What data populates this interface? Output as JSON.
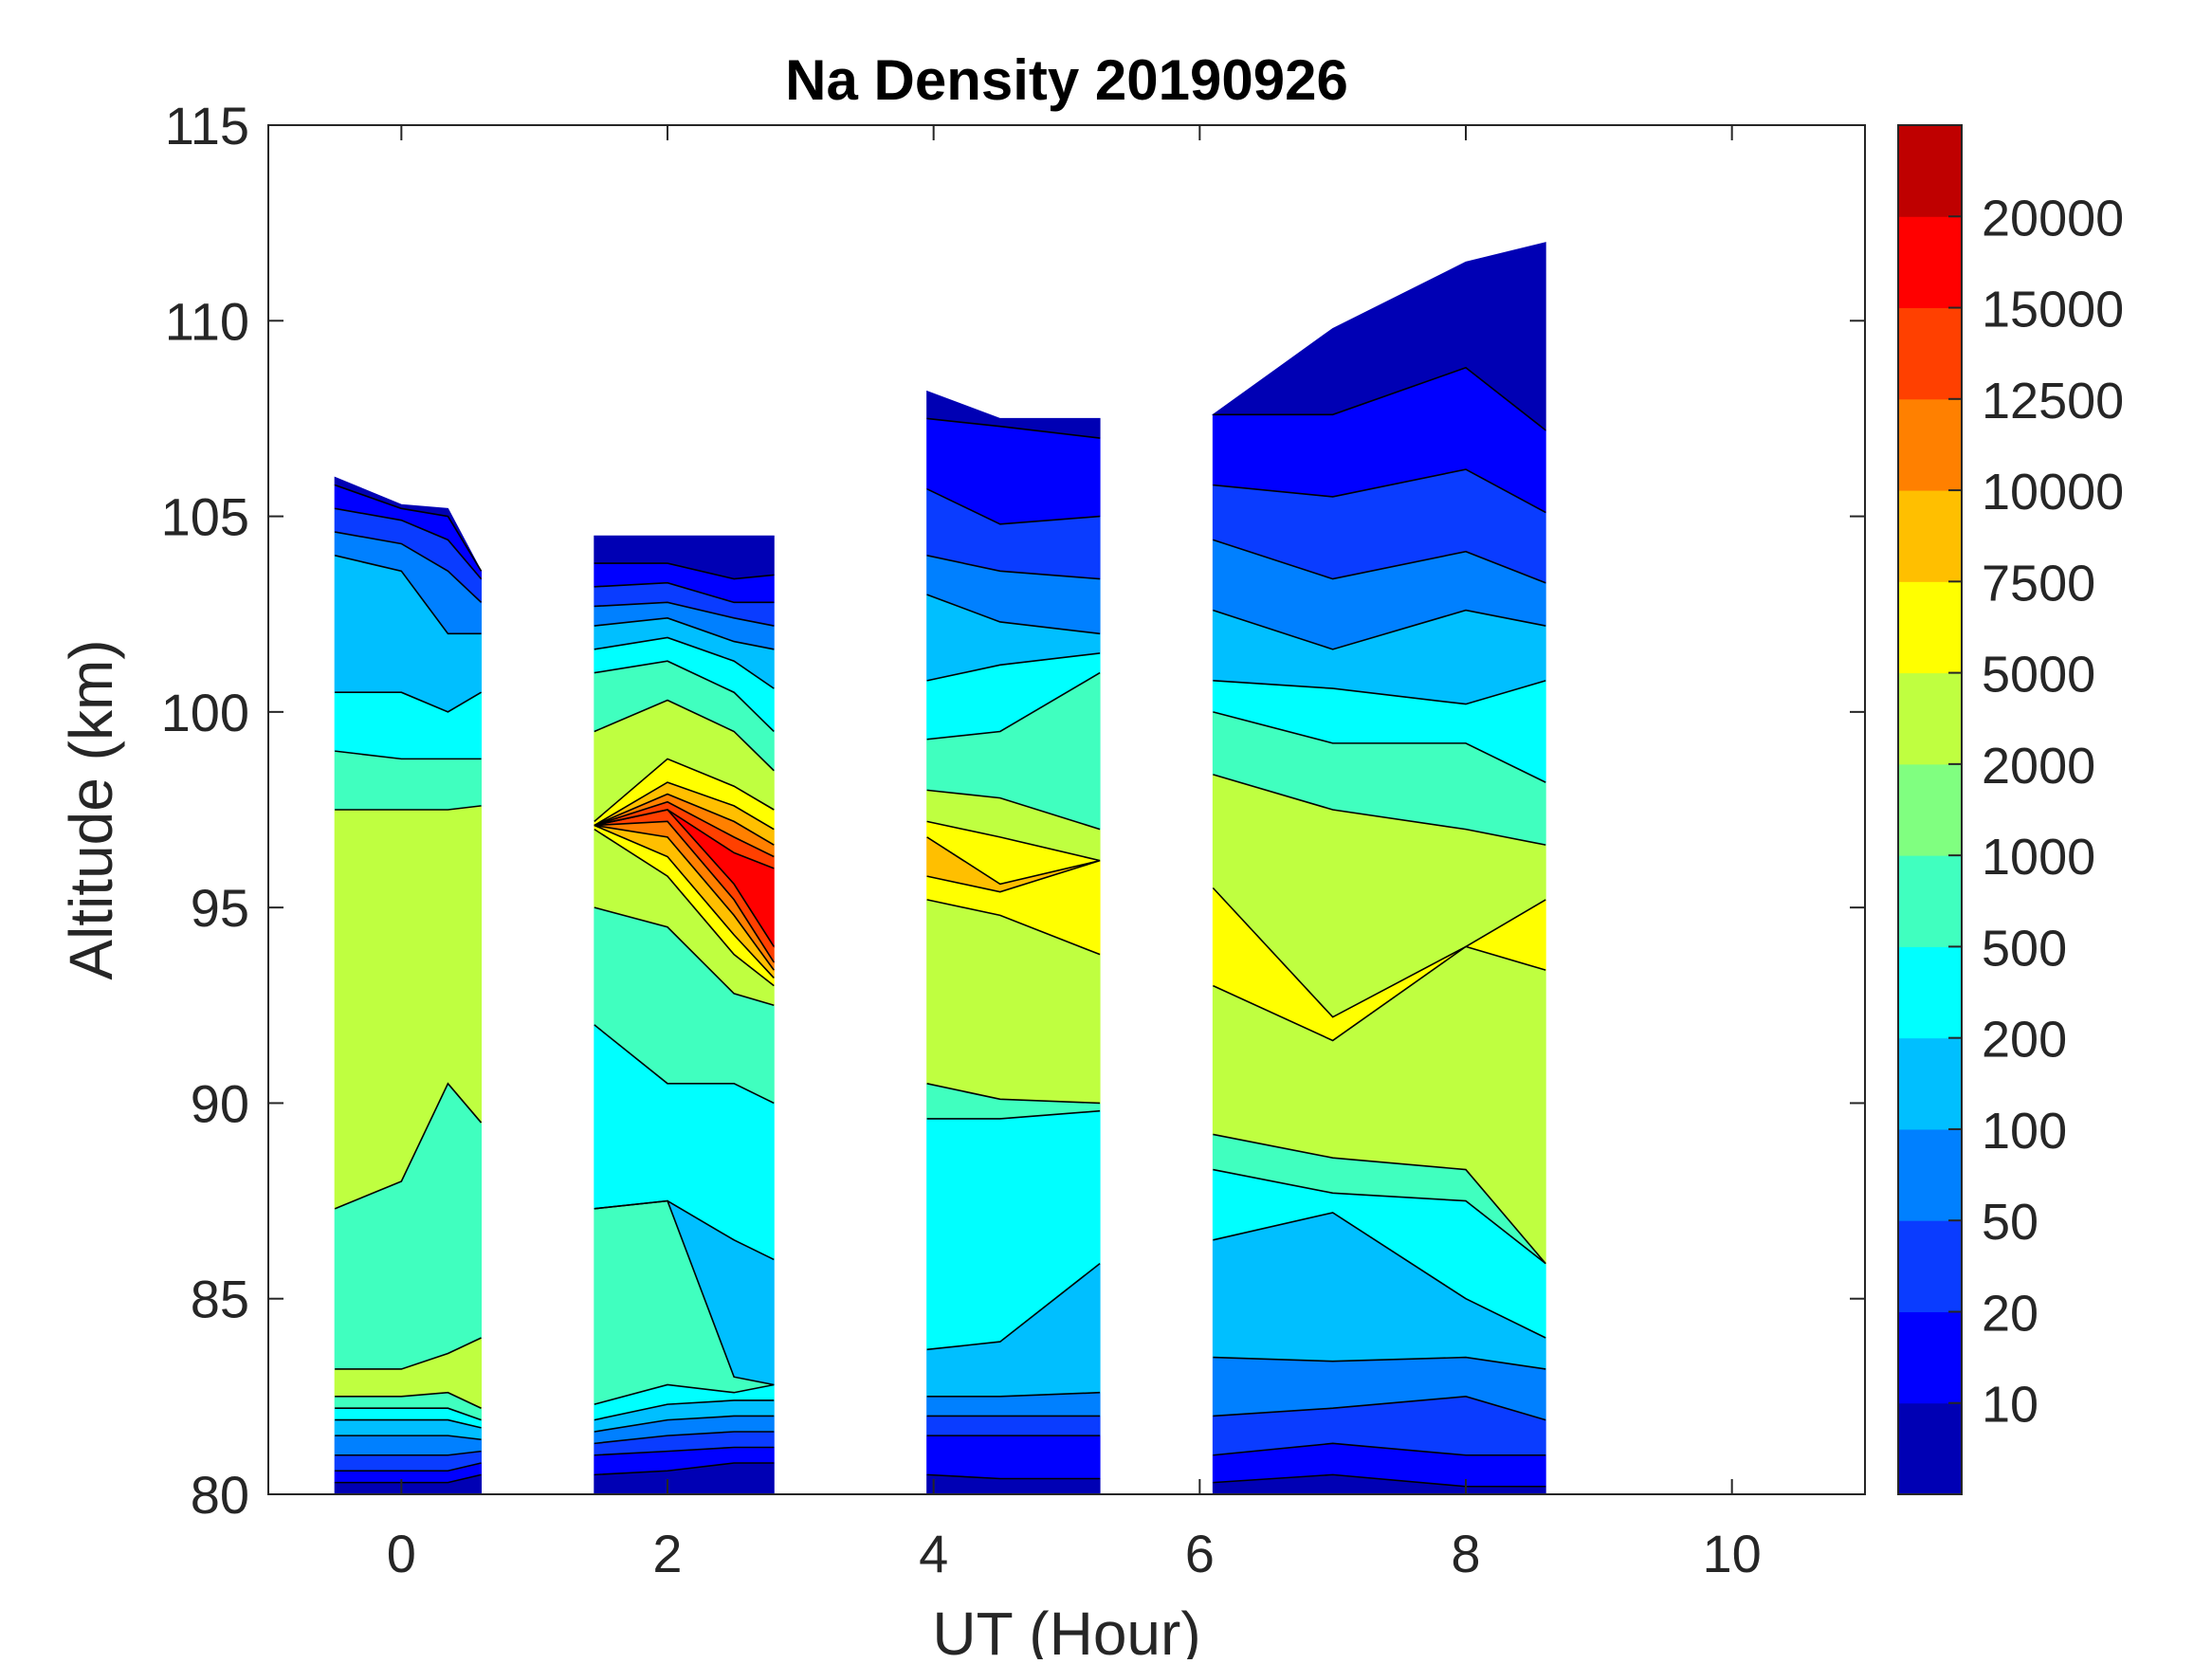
{
  "chart_data": {
    "type": "contour",
    "title": "Na Density 20190926",
    "xlabel": "UT (Hour)",
    "ylabel": "Altitude (km)",
    "xlim": [
      -1,
      11
    ],
    "ylim": [
      80,
      115
    ],
    "xticks": [
      0,
      2,
      4,
      6,
      8,
      10
    ],
    "yticks": [
      80,
      85,
      90,
      95,
      100,
      105,
      110,
      115
    ],
    "colorbar": {
      "labels": [
        "10",
        "20",
        "50",
        "100",
        "200",
        "500",
        "1000",
        "2000",
        "5000",
        "7500",
        "10000",
        "12500",
        "15000",
        "20000"
      ],
      "colors": [
        "#0000B4",
        "#0000FF",
        "#0A3CFF",
        "#0080FF",
        "#00BFFF",
        "#00FFFF",
        "#40FFBF",
        "#80FF80",
        "#BFFF40",
        "#FFFF00",
        "#FFBF00",
        "#FF8000",
        "#FF4000",
        "#FF0000",
        "#BF0000"
      ]
    },
    "segments": [
      {
        "bands": [
          0,
          1,
          2,
          3,
          4,
          5,
          6,
          8,
          6,
          8,
          6,
          5,
          4,
          3,
          2,
          1,
          0
        ],
        "profiles": [
          {
            "t": -0.5,
            "tops": [
              80.3,
              80.6,
              81,
              81.5,
              81.9,
              82.2,
              82.5,
              83.2,
              87.3,
              97.5,
              99,
              100.5,
              104,
              104.6,
              105.2,
              105.8,
              106
            ]
          },
          {
            "t": 0,
            "tops": [
              80.3,
              80.6,
              81,
              81.5,
              81.9,
              82.2,
              82.5,
              83.2,
              88,
              97.5,
              98.8,
              100.5,
              103.6,
              104.3,
              104.9,
              105.2,
              105.3
            ]
          },
          {
            "t": 0.35,
            "tops": [
              80.3,
              80.6,
              81,
              81.5,
              81.9,
              82.2,
              82.6,
              83.6,
              90.5,
              97.5,
              98.8,
              100,
              102,
              103.6,
              104.4,
              105,
              105.2
            ]
          },
          {
            "t": 0.6,
            "tops": [
              80.5,
              80.8,
              81.1,
              81.4,
              81.7,
              81.9,
              82.2,
              84,
              89.5,
              97.6,
              98.8,
              100.5,
              102,
              102.8,
              103.4,
              103.6,
              103.6
            ]
          }
        ]
      },
      {
        "bands": [
          0,
          1,
          2,
          3,
          4,
          5,
          6,
          4,
          5,
          6,
          8,
          9,
          10,
          11,
          12,
          13,
          12,
          11,
          10,
          9,
          8,
          6,
          5,
          4,
          3,
          2,
          1,
          0
        ],
        "profiles": [
          {
            "t": 1.45,
            "tops": [
              80.5,
              81,
              81.3,
              81.6,
              81.9,
              82.3,
              87.3,
              87.3,
              92,
              95,
              97,
              97.1,
              97.1,
              97.1,
              97.1,
              97.1,
              97.1,
              97.1,
              97.1,
              97.2,
              99.5,
              101,
              101.6,
              102.2,
              102.7,
              103.2,
              103.8,
              104.5
            ]
          },
          {
            "t": 2.0,
            "tops": [
              80.6,
              81.1,
              81.5,
              81.9,
              82.3,
              82.8,
              87.5,
              87.5,
              90.5,
              94.5,
              95.8,
              96.3,
              96.8,
              97.2,
              97.5,
              97.5,
              97.7,
              97.9,
              98.2,
              98.8,
              100.3,
              101.3,
              101.9,
              102.4,
              102.8,
              103.3,
              103.8,
              104.5
            ]
          },
          {
            "t": 2.5,
            "tops": [
              80.8,
              81.2,
              81.6,
              82,
              82.4,
              82.6,
              83,
              86.5,
              90.5,
              92.8,
              93.8,
              94.3,
              94.8,
              95.2,
              95.6,
              96.4,
              96.8,
              97.2,
              97.6,
              98.1,
              99.5,
              100.5,
              101.3,
              101.8,
              102.4,
              102.8,
              103.4,
              104.5
            ]
          },
          {
            "t": 2.8,
            "tops": [
              80.8,
              81.2,
              81.6,
              82,
              82.4,
              82.8,
              82.8,
              86,
              90,
              92.5,
              93,
              93.2,
              93.4,
              93.6,
              94,
              96,
              96.3,
              96.6,
              97,
              97.5,
              98.5,
              99.5,
              100.6,
              101.6,
              102.2,
              102.8,
              103.5,
              104.5
            ]
          }
        ]
      },
      {
        "bands": [
          0,
          1,
          2,
          3,
          4,
          5,
          6,
          8,
          9,
          10,
          9,
          8,
          6,
          5,
          4,
          3,
          2,
          1,
          0
        ],
        "profiles": [
          {
            "t": 3.95,
            "tops": [
              80.5,
              81.5,
              82,
              82.5,
              83.7,
              89.6,
              90.5,
              95.2,
              95.8,
              96.8,
              97.2,
              98,
              99.3,
              100.8,
              103,
              104,
              105.7,
              107.5,
              108.2
            ]
          },
          {
            "t": 4.5,
            "tops": [
              80.4,
              81.5,
              82,
              82.5,
              83.9,
              89.6,
              90.1,
              94.8,
              95.4,
              95.6,
              96.8,
              97.8,
              99.5,
              101.2,
              102.3,
              103.6,
              104.8,
              107.3,
              107.5
            ]
          },
          {
            "t": 5.25,
            "tops": [
              80.4,
              81.5,
              82,
              82.6,
              85.9,
              89.8,
              90,
              93.8,
              96.2,
              96.2,
              96.2,
              97,
              101,
              101.5,
              102,
              103.4,
              105,
              107,
              107.5
            ]
          }
        ]
      },
      {
        "bands": [
          0,
          1,
          2,
          3,
          4,
          5,
          6,
          8,
          9,
          8,
          6,
          5,
          4,
          3,
          2,
          1,
          0
        ],
        "profiles": [
          {
            "t": 6.1,
            "tops": [
              80.3,
              81,
              82,
              83.5,
              86.5,
              88.3,
              89.2,
              93,
              95.5,
              98.4,
              100,
              100.8,
              102.6,
              104.4,
              105.8,
              107.6,
              107.6
            ]
          },
          {
            "t": 7.0,
            "tops": [
              80.5,
              81.3,
              82.2,
              83.4,
              87.2,
              87.7,
              88.6,
              91.6,
              92.2,
              97.5,
              99.2,
              100.6,
              101.6,
              103.4,
              105.5,
              107.6,
              109.8
            ]
          },
          {
            "t": 8.0,
            "tops": [
              80.2,
              81,
              82.5,
              83.5,
              85,
              87.5,
              88.3,
              94,
              94,
              97,
              99.2,
              100.2,
              102.6,
              104.1,
              106.2,
              108.8,
              111.5
            ]
          },
          {
            "t": 8.6,
            "tops": [
              80.2,
              81,
              81.9,
              83.2,
              84,
              85.9,
              85.9,
              93.4,
              95.2,
              96.6,
              98.2,
              100.8,
              102.2,
              103.3,
              105.1,
              107.2,
              112
            ]
          }
        ]
      }
    ]
  }
}
